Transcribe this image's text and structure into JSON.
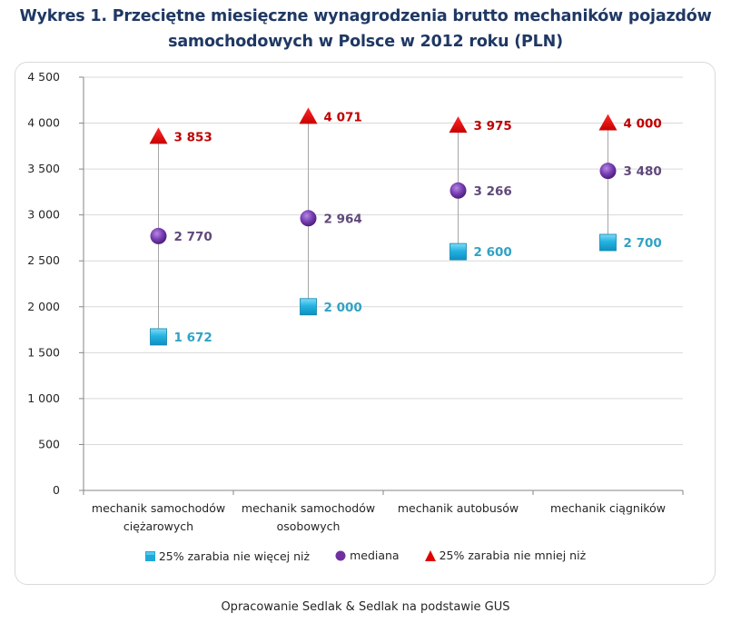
{
  "title_line1": "Wykres 1. Przeciętne miesięczne wynagrodzenia brutto mechaników pojazdów",
  "title_line2": "samochodowych w Polsce w 2012 roku (PLN)",
  "source": "Opracowanie Sedlak & Sedlak na podstawie GUS",
  "chart_data": {
    "type": "scatter",
    "title": "Wykres 1. Przeciętne miesięczne wynagrodzenia brutto mechaników pojazdów samochodowych w Polsce w 2012 roku (PLN)",
    "xlabel": "",
    "ylabel": "",
    "ylim": [
      0,
      4500
    ],
    "yticks": [
      0,
      500,
      1000,
      1500,
      2000,
      2500,
      3000,
      3500,
      4000,
      4500
    ],
    "ytick_labels": [
      "0",
      "500",
      "1 000",
      "1 500",
      "2 000",
      "2 500",
      "3 000",
      "3 500",
      "4 000",
      "4 500"
    ],
    "grid": true,
    "legend_position": "bottom",
    "categories": [
      [
        "mechanik samochodów",
        "ciężarowych"
      ],
      [
        "mechanik samochodów",
        "osobowych"
      ],
      [
        "mechanik autobusów"
      ],
      [
        "mechanik ciągników"
      ]
    ],
    "series": [
      {
        "name": "25% zarabia nie więcej niż",
        "marker": "square",
        "color": "#1fa9d8",
        "label_color": "#31a2c4",
        "values": [
          1672,
          2000,
          2600,
          2700
        ],
        "labels": [
          "1 672",
          "2 000",
          "2 600",
          "2 700"
        ]
      },
      {
        "name": "mediana",
        "marker": "circle",
        "color": "#7030a0",
        "label_color": "#60497a",
        "values": [
          2770,
          2964,
          3266,
          3480
        ],
        "labels": [
          "2 770",
          "2 964",
          "3 266",
          "3 480"
        ]
      },
      {
        "name": "25% zarabia nie mniej niż",
        "marker": "triangle",
        "color": "#e00000",
        "label_color": "#c00000",
        "values": [
          3853,
          4071,
          3975,
          4000
        ],
        "labels": [
          "3 853",
          "4 071",
          "3 975",
          "4 000"
        ]
      }
    ]
  }
}
